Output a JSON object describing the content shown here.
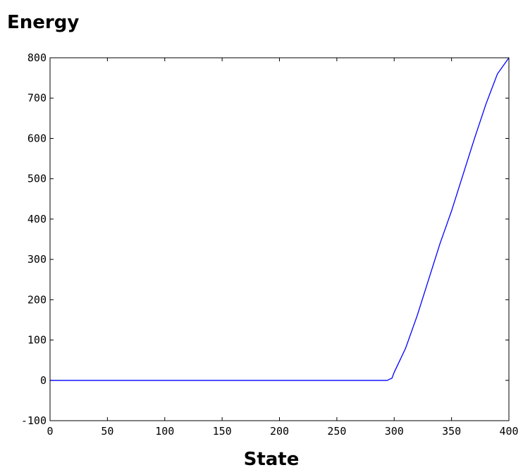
{
  "chart_data": {
    "type": "line",
    "title": "",
    "xlabel": "State",
    "ylabel": "Energy",
    "xlim": [
      0,
      400
    ],
    "ylim": [
      -100,
      800
    ],
    "xticks": [
      0,
      50,
      100,
      150,
      200,
      250,
      300,
      350,
      400
    ],
    "yticks": [
      -100,
      0,
      100,
      200,
      300,
      400,
      500,
      600,
      700,
      800
    ],
    "grid": false,
    "line_color": "#0000ff",
    "series": [
      {
        "x": [
          0,
          50,
          100,
          150,
          200,
          250,
          290,
          294,
          296,
          298,
          300,
          305,
          310,
          320,
          330,
          340,
          350,
          360,
          370,
          380,
          390,
          400
        ],
        "values": [
          0,
          0,
          0,
          0,
          0,
          0,
          0,
          0,
          3,
          5,
          20,
          50,
          80,
          160,
          250,
          340,
          420,
          510,
          600,
          685,
          760,
          800
        ]
      }
    ]
  }
}
